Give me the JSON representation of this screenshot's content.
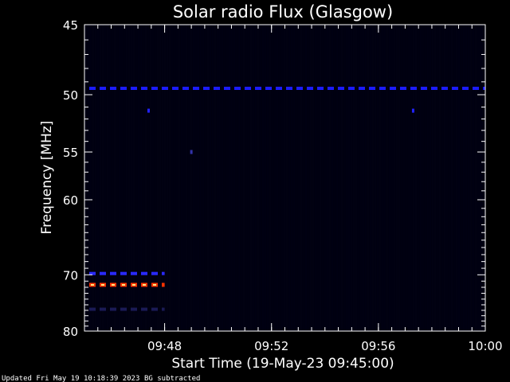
{
  "chart_data": {
    "type": "heatmap",
    "title": "Solar radio Flux (Glasgow)",
    "xlabel": "Start Time (19-May-23 09:45:00)",
    "ylabel": "Frequency [MHz]",
    "xlim": [
      "09:45",
      "10:00"
    ],
    "ylim": [
      45,
      80
    ],
    "x_ticks": [
      "09:48",
      "09:52",
      "09:56",
      "10:00"
    ],
    "y_ticks": [
      45,
      50,
      55,
      60,
      70,
      80
    ],
    "background_color": "#000010",
    "features": [
      {
        "kind": "band",
        "frequency": 49.5,
        "start": "09:45",
        "end": "10:00",
        "color": "#1c1cff"
      },
      {
        "kind": "band",
        "frequency": 69.8,
        "start": "09:45",
        "end": "09:48",
        "color": "#2a2aff"
      },
      {
        "kind": "band",
        "frequency": 71.6,
        "start": "09:45",
        "end": "09:48",
        "color": "#ff3300"
      },
      {
        "kind": "band",
        "frequency": 75.8,
        "start": "09:45",
        "end": "09:48",
        "color": "#1a1a55"
      },
      {
        "kind": "spot",
        "frequency": 51.3,
        "time": "09:47.4",
        "color": "#2222ff"
      },
      {
        "kind": "spot",
        "frequency": 51.3,
        "time": "09:57.3",
        "color": "#2222ff"
      },
      {
        "kind": "spot",
        "frequency": 55.0,
        "time": "09:49.0",
        "color": "#3333aa"
      }
    ],
    "grid": false,
    "colors": {
      "axes": "#ffffff",
      "text": "#ffffff"
    }
  },
  "footer": {
    "updated": "Updated Fri May 19 10:18:39 2023",
    "note": "BG subtracted"
  }
}
